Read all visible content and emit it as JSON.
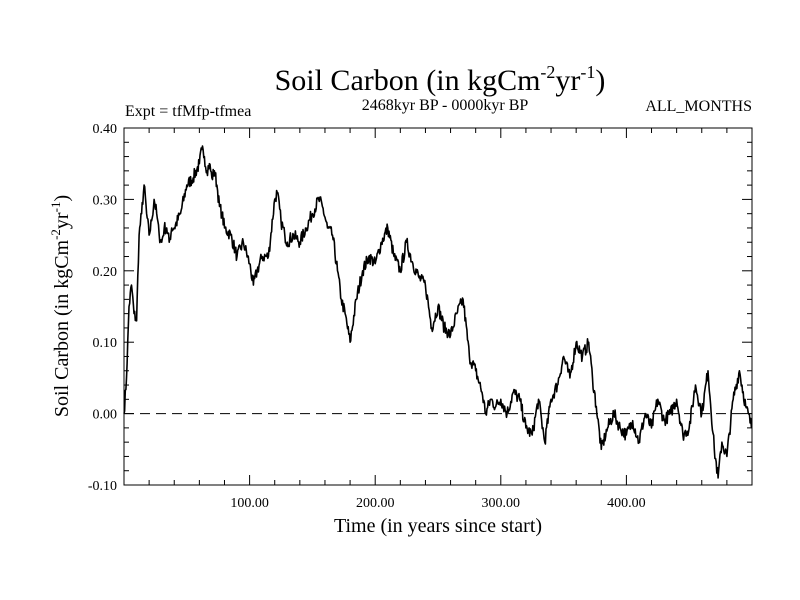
{
  "chart_data": {
    "type": "line",
    "title": "Soil Carbon (in kgCm",
    "title_sup1": "-2",
    "title_mid": "yr",
    "title_sup2": "-1",
    "title_end": ")",
    "subtitle_left": "Expt = tfMfp-tfmea",
    "subtitle_center": "2468kyr BP - 0000kyr BP",
    "subtitle_right": "ALL_MONTHS",
    "xlabel": "Time (in years since start)",
    "ylabel": "Soil Carbon (in kgCm",
    "ylabel_sup1": "-2",
    "ylabel_mid": "yr",
    "ylabel_sup2": "-1",
    "ylabel_end": ")",
    "xlim": [
      0,
      500
    ],
    "ylim": [
      -0.1,
      0.4
    ],
    "xticks": [
      {
        "value": 100,
        "label": "100.00"
      },
      {
        "value": 200,
        "label": "200.00"
      },
      {
        "value": 300,
        "label": "300.00"
      },
      {
        "value": 400,
        "label": "400.00"
      }
    ],
    "yticks": [
      {
        "value": 0.4,
        "label": "0.40"
      },
      {
        "value": 0.3,
        "label": "0.30"
      },
      {
        "value": 0.2,
        "label": "0.20"
      },
      {
        "value": 0.1,
        "label": "0.10"
      },
      {
        "value": 0.0,
        "label": "0.00"
      },
      {
        "value": -0.1,
        "label": "-0.10"
      }
    ],
    "reference_line": {
      "y": 0.0,
      "style": "dashed"
    },
    "series": [
      {
        "name": "Soil Carbon",
        "x": [
          0,
          2,
          4,
          6,
          8,
          10,
          12,
          14,
          16,
          18,
          20,
          22,
          24,
          26,
          28,
          30,
          32,
          34,
          36,
          38,
          40,
          45,
          50,
          55,
          60,
          62,
          64,
          66,
          68,
          70,
          72,
          74,
          76,
          78,
          80,
          85,
          90,
          95,
          100,
          103,
          106,
          110,
          115,
          120,
          122,
          125,
          128,
          130,
          135,
          140,
          145,
          150,
          155,
          158,
          162,
          166,
          170,
          173,
          176,
          180,
          185,
          190,
          195,
          200,
          205,
          210,
          215,
          220,
          225,
          230,
          235,
          240,
          245,
          250,
          255,
          260,
          265,
          270,
          275,
          280,
          285,
          288,
          292,
          296,
          300,
          305,
          310,
          315,
          320,
          325,
          330,
          335,
          340,
          345,
          350,
          355,
          360,
          365,
          370,
          373,
          376,
          380,
          385,
          390,
          395,
          400,
          405,
          410,
          415,
          420,
          425,
          430,
          435,
          440,
          445,
          450,
          455,
          460,
          465,
          470,
          473,
          476,
          480,
          485,
          490,
          495,
          500
        ],
        "values": [
          0.0,
          0.05,
          0.15,
          0.18,
          0.14,
          0.13,
          0.25,
          0.28,
          0.32,
          0.28,
          0.25,
          0.27,
          0.3,
          0.28,
          0.25,
          0.24,
          0.26,
          0.26,
          0.24,
          0.26,
          0.26,
          0.28,
          0.32,
          0.33,
          0.35,
          0.37,
          0.36,
          0.34,
          0.35,
          0.33,
          0.34,
          0.32,
          0.29,
          0.28,
          0.26,
          0.25,
          0.22,
          0.24,
          0.21,
          0.18,
          0.2,
          0.22,
          0.22,
          0.3,
          0.31,
          0.27,
          0.25,
          0.24,
          0.25,
          0.24,
          0.26,
          0.28,
          0.3,
          0.29,
          0.26,
          0.25,
          0.2,
          0.16,
          0.14,
          0.1,
          0.16,
          0.2,
          0.22,
          0.21,
          0.24,
          0.26,
          0.22,
          0.2,
          0.24,
          0.21,
          0.19,
          0.18,
          0.12,
          0.15,
          0.12,
          0.11,
          0.14,
          0.16,
          0.08,
          0.06,
          0.03,
          0.0,
          0.02,
          0.01,
          0.02,
          0.0,
          0.03,
          0.02,
          -0.02,
          -0.03,
          0.02,
          -0.04,
          0.02,
          0.04,
          0.08,
          0.05,
          0.1,
          0.08,
          0.1,
          0.05,
          0.01,
          -0.05,
          -0.02,
          0.0,
          -0.02,
          -0.03,
          -0.01,
          -0.04,
          0.0,
          -0.02,
          0.02,
          -0.01,
          0.0,
          0.02,
          -0.03,
          -0.02,
          0.04,
          0.0,
          0.06,
          -0.05,
          -0.09,
          -0.04,
          -0.06,
          0.02,
          0.06,
          0.01,
          -0.02
        ]
      }
    ]
  }
}
